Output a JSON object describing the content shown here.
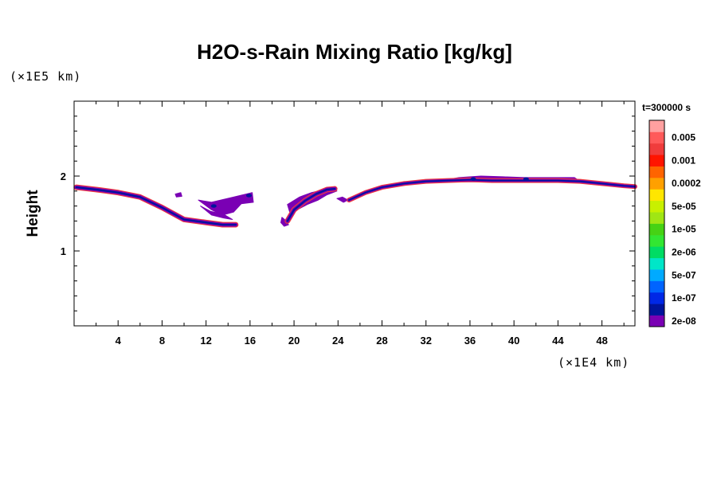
{
  "chart_data": {
    "type": "heatmap",
    "title": "H2O-s-Rain Mixing Ratio [kg/kg]",
    "xlabel": "",
    "ylabel": "Height",
    "x_unit": "(×1E4 km)",
    "y_unit": "(×1E5 km)",
    "time_label": "t=300000 s",
    "xlim": [
      0,
      51
    ],
    "ylim": [
      0,
      3
    ],
    "x_ticks": [
      4,
      8,
      12,
      16,
      20,
      24,
      28,
      32,
      36,
      40,
      44,
      48
    ],
    "y_ticks": [
      1,
      2
    ],
    "colorbar": {
      "levels": [
        {
          "color": "#7a00b4",
          "label": "2e-08"
        },
        {
          "color": "#00149c",
          "label": ""
        },
        {
          "color": "#0028e6",
          "label": "1e-07"
        },
        {
          "color": "#0064ff",
          "label": ""
        },
        {
          "color": "#00aaff",
          "label": "5e-07"
        },
        {
          "color": "#00e6c8",
          "label": ""
        },
        {
          "color": "#00dc64",
          "label": "2e-06"
        },
        {
          "color": "#32e632",
          "label": ""
        },
        {
          "color": "#46d214",
          "label": "1e-05"
        },
        {
          "color": "#a0e614",
          "label": ""
        },
        {
          "color": "#c8f000",
          "label": "5e-05"
        },
        {
          "color": "#ffe600",
          "label": ""
        },
        {
          "color": "#ffa000",
          "label": "0.0002"
        },
        {
          "color": "#ff6400",
          "label": ""
        },
        {
          "color": "#ff1400",
          "label": "0.001"
        },
        {
          "color": "#f03c3c",
          "label": ""
        },
        {
          "color": "#ff5a5a",
          "label": "0.005"
        },
        {
          "color": "#ffa0a0",
          "label": ""
        }
      ]
    },
    "bands": [
      {
        "x": [
          0.2,
          2,
          4,
          6,
          8,
          9,
          10,
          12,
          13.5,
          14.7
        ],
        "y": [
          1.85,
          1.82,
          1.78,
          1.72,
          1.58,
          1.5,
          1.42,
          1.38,
          1.35,
          1.35
        ],
        "thickness": 0.05
      },
      {
        "x": [
          19.4,
          20,
          21,
          22,
          23,
          23.7
        ],
        "y": [
          1.4,
          1.55,
          1.67,
          1.76,
          1.82,
          1.83
        ],
        "thickness": 0.05
      },
      {
        "x": [
          25,
          26.5,
          28,
          30,
          32,
          34,
          36,
          38,
          40,
          42,
          44,
          46,
          48,
          50,
          51
        ],
        "y": [
          1.68,
          1.78,
          1.85,
          1.9,
          1.93,
          1.94,
          1.95,
          1.94,
          1.94,
          1.94,
          1.94,
          1.93,
          1.9,
          1.87,
          1.86
        ],
        "thickness": 0.04
      }
    ],
    "patches": [
      {
        "points": [
          [
            11.3,
            1.68
          ],
          [
            12.5,
            1.65
          ],
          [
            14.5,
            1.72
          ],
          [
            16.2,
            1.78
          ],
          [
            16.3,
            1.65
          ],
          [
            15.2,
            1.63
          ],
          [
            14.5,
            1.52
          ],
          [
            13.5,
            1.48
          ],
          [
            12.5,
            1.55
          ]
        ]
      },
      {
        "points": [
          [
            11.5,
            1.6
          ],
          [
            12.4,
            1.53
          ],
          [
            13.6,
            1.49
          ],
          [
            14.4,
            1.42
          ],
          [
            13.6,
            1.44
          ],
          [
            12.5,
            1.48
          ]
        ]
      },
      {
        "points": [
          [
            9.2,
            1.76
          ],
          [
            9.7,
            1.78
          ],
          [
            9.8,
            1.73
          ],
          [
            9.3,
            1.72
          ]
        ]
      },
      {
        "points": [
          [
            18.9,
            1.45
          ],
          [
            19.3,
            1.4
          ],
          [
            19.5,
            1.35
          ],
          [
            19.1,
            1.33
          ],
          [
            18.8,
            1.38
          ]
        ]
      },
      {
        "points": [
          [
            19.4,
            1.62
          ],
          [
            20.5,
            1.72
          ],
          [
            21.6,
            1.78
          ],
          [
            22.8,
            1.82
          ],
          [
            23.6,
            1.84
          ],
          [
            23.9,
            1.8
          ],
          [
            23,
            1.75
          ],
          [
            22.2,
            1.68
          ],
          [
            21.2,
            1.62
          ],
          [
            20.3,
            1.55
          ],
          [
            19.6,
            1.52
          ]
        ]
      },
      {
        "points": [
          [
            23.9,
            1.7
          ],
          [
            24.5,
            1.65
          ],
          [
            24.9,
            1.68
          ],
          [
            24.4,
            1.72
          ]
        ]
      },
      {
        "points": [
          [
            33,
            1.93
          ],
          [
            35,
            1.98
          ],
          [
            37,
            2.0
          ],
          [
            39,
            1.99
          ],
          [
            41,
            1.98
          ],
          [
            43,
            1.98
          ],
          [
            45.5,
            1.98
          ],
          [
            46,
            1.93
          ],
          [
            33,
            1.92
          ]
        ]
      }
    ],
    "cores": [
      {
        "x": 15.9,
        "y": 1.74
      },
      {
        "x": 12.7,
        "y": 1.6
      },
      {
        "x": 36.3,
        "y": 1.96
      },
      {
        "x": 41.1,
        "y": 1.96
      }
    ]
  }
}
